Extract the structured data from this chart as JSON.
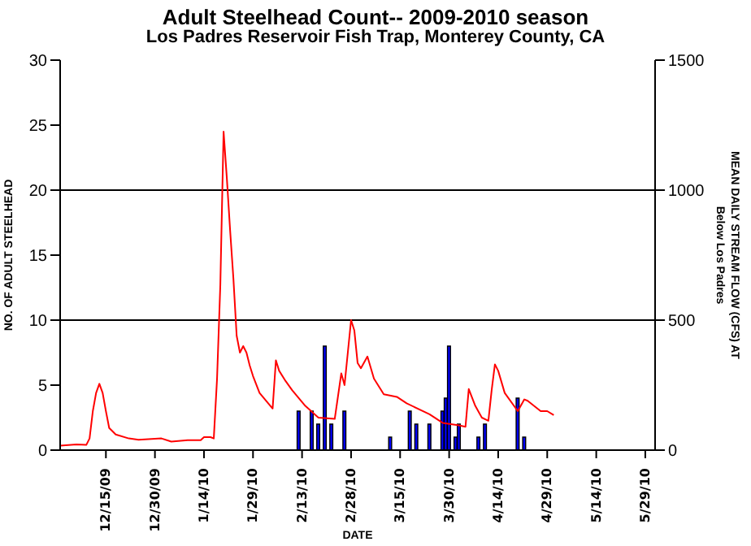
{
  "chart_data": {
    "type": "bar",
    "title": "Adult Steelhead Count-- 2009-2010 season",
    "subtitle": "Los Padres Reservoir Fish Trap, Monterey County, CA",
    "xlabel": "DATE",
    "ylabel": "NO. OF ADULT STEELHEAD",
    "y2label": "MEAN DAILY STREAM FLOW (CFS) AT\nBelow Los Padres",
    "xlim": [
      "2009-12-01",
      "2010-06-01"
    ],
    "xticks": [
      {
        "value": "2009-12-15",
        "label": "12/15/09"
      },
      {
        "value": "2009-12-30",
        "label": "12/30/09"
      },
      {
        "value": "2010-01-14",
        "label": "1/14/10"
      },
      {
        "value": "2010-01-29",
        "label": "1/29/10"
      },
      {
        "value": "2010-02-13",
        "label": "2/13/10"
      },
      {
        "value": "2010-02-28",
        "label": "2/28/10"
      },
      {
        "value": "2010-03-15",
        "label": "3/15/10"
      },
      {
        "value": "2010-03-30",
        "label": "3/30/10"
      },
      {
        "value": "2010-04-14",
        "label": "4/14/10"
      },
      {
        "value": "2010-04-29",
        "label": "4/29/10"
      },
      {
        "value": "2010-05-14",
        "label": "5/14/10"
      },
      {
        "value": "2010-05-29",
        "label": "5/29/10"
      }
    ],
    "ylim": [
      0,
      30
    ],
    "yticks": [
      0,
      5,
      10,
      15,
      20,
      25,
      30
    ],
    "y2lim": [
      0,
      1500
    ],
    "y2ticks": [
      0,
      500,
      1000,
      1500
    ],
    "ref_lines": [
      {
        "axis": "y2",
        "value": 500,
        "color": "#000000"
      },
      {
        "axis": "y2",
        "value": 1000,
        "color": "#000000"
      }
    ],
    "series": [
      {
        "color": "#0000ff",
        "x": [
          "2010-02-12",
          "2010-02-16",
          "2010-02-18",
          "2010-02-20",
          "2010-02-22",
          "2010-02-26",
          "2010-03-12",
          "2010-03-18",
          "2010-03-20",
          "2010-03-24",
          "2010-03-28",
          "2010-03-29",
          "2010-03-30",
          "2010-04-01",
          "2010-04-02",
          "2010-04-08",
          "2010-04-10",
          "2010-04-20",
          "2010-04-22"
        ],
        "values": [
          3,
          3,
          2,
          8,
          2,
          3,
          1,
          3,
          2,
          2,
          3,
          4,
          8,
          1,
          2,
          1,
          2,
          4,
          1
        ]
      },
      {
        "type": "line",
        "axis": "y2",
        "color": "#ff0000",
        "x": [
          "2009-12-01",
          "2009-12-06",
          "2009-12-09",
          "2009-12-10",
          "2009-12-11",
          "2009-12-12",
          "2009-12-13",
          "2009-12-14",
          "2009-12-15",
          "2009-12-16",
          "2009-12-18",
          "2009-12-22",
          "2009-12-25",
          "2010-01-01",
          "2010-01-04",
          "2010-01-09",
          "2010-01-13",
          "2010-01-14",
          "2010-01-16",
          "2010-01-17",
          "2010-01-18",
          "2010-01-19",
          "2010-01-20",
          "2010-01-21",
          "2010-01-22",
          "2010-01-23",
          "2010-01-24",
          "2010-01-25",
          "2010-01-26",
          "2010-01-27",
          "2010-01-28",
          "2010-01-29",
          "2010-01-31",
          "2010-02-04",
          "2010-02-05",
          "2010-02-06",
          "2010-02-08",
          "2010-02-10",
          "2010-02-14",
          "2010-02-18",
          "2010-02-23",
          "2010-02-25",
          "2010-02-26",
          "2010-02-27",
          "2010-02-28",
          "2010-03-01",
          "2010-03-02",
          "2010-03-03",
          "2010-03-05",
          "2010-03-07",
          "2010-03-10",
          "2010-03-14",
          "2010-03-17",
          "2010-03-24",
          "2010-03-28",
          "2010-04-02",
          "2010-04-04",
          "2010-04-05",
          "2010-04-07",
          "2010-04-09",
          "2010-04-11",
          "2010-04-12",
          "2010-04-13",
          "2010-04-14",
          "2010-04-16",
          "2010-04-20",
          "2010-04-22",
          "2010-04-23",
          "2010-04-27",
          "2010-04-29",
          "2010-05-01"
        ],
        "values": [
          17,
          22,
          20,
          45,
          150,
          220,
          255,
          220,
          150,
          85,
          60,
          45,
          40,
          45,
          33,
          38,
          38,
          50,
          50,
          45,
          275,
          635,
          1225,
          1045,
          845,
          660,
          440,
          375,
          400,
          375,
          325,
          285,
          220,
          160,
          345,
          305,
          265,
          230,
          170,
          125,
          120,
          295,
          250,
          375,
          500,
          460,
          335,
          315,
          360,
          275,
          215,
          205,
          180,
          138,
          105,
          95,
          90,
          235,
          170,
          125,
          113,
          230,
          330,
          305,
          220,
          150,
          195,
          190,
          150,
          150,
          135
        ]
      }
    ]
  }
}
